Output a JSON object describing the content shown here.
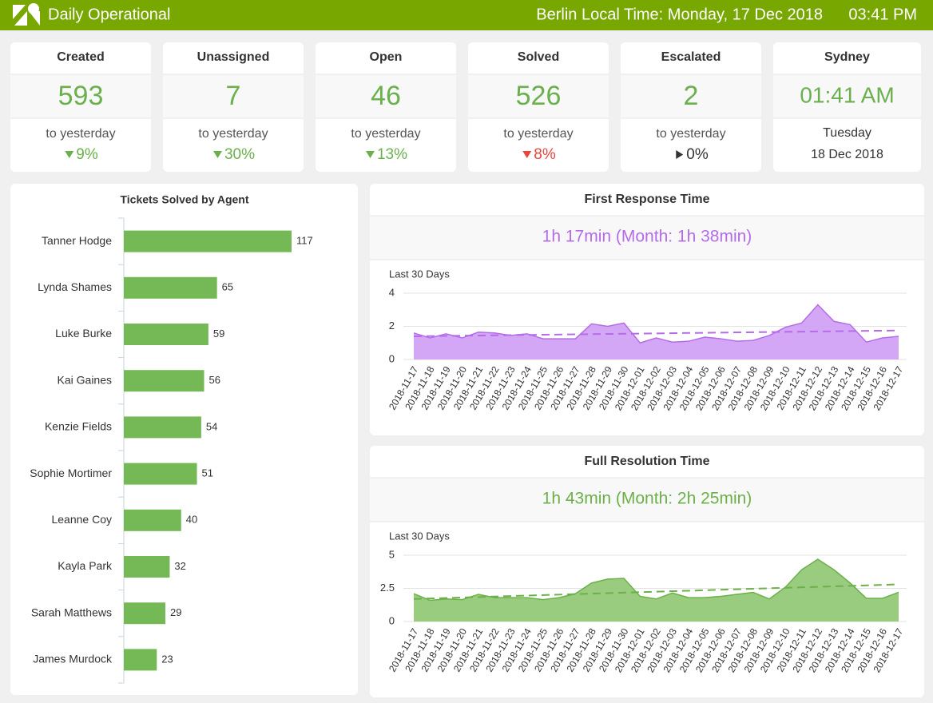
{
  "header": {
    "title": "Daily Operational",
    "time_label": "Berlin Local Time: Monday, 17 Dec 2018",
    "time": "03:41 PM",
    "color": "#78a800"
  },
  "kpis": [
    {
      "title": "Created",
      "value": "593",
      "caption": "to yesterday",
      "change": "9%",
      "arrow": "down",
      "color": "#6ab04c"
    },
    {
      "title": "Unassigned",
      "value": "7",
      "caption": "to yesterday",
      "change": "30%",
      "arrow": "down",
      "color": "#6ab04c"
    },
    {
      "title": "Open",
      "value": "46",
      "caption": "to yesterday",
      "change": "13%",
      "arrow": "down",
      "color": "#6ab04c"
    },
    {
      "title": "Solved",
      "value": "526",
      "caption": "to yesterday",
      "change": "8%",
      "arrow": "down",
      "color": "#e8453c"
    },
    {
      "title": "Escalated",
      "value": "2",
      "caption": "to yesterday",
      "change": "0%",
      "arrow": "right",
      "color": "#333333"
    }
  ],
  "clock": {
    "title": "Sydney",
    "time": "01:41 AM",
    "day": "Tuesday",
    "date": "18 Dec 2018"
  },
  "chart_data": [
    {
      "type": "bar",
      "orientation": "horizontal",
      "title": "Tickets Solved by Agent",
      "color": "#75b957",
      "categories": [
        "Tanner Hodge",
        "Lynda Shames",
        "Luke Burke",
        "Kai Gaines",
        "Kenzie Fields",
        "Sophie Mortimer",
        "Leanne Coy",
        "Kayla Park",
        "Sarah Matthews",
        "James Murdock"
      ],
      "values": [
        117,
        65,
        59,
        56,
        54,
        51,
        40,
        32,
        29,
        23
      ]
    },
    {
      "type": "area",
      "title": "First Response Time",
      "subtitle": "1h 17min (Month: 1h 38min)",
      "label": "Last 30 Days",
      "color": "#b56ce8",
      "fill": "#cf9df5",
      "x": [
        "2018-11-17",
        "2018-11-18",
        "2018-11-19",
        "2018-11-20",
        "2018-11-21",
        "2018-11-22",
        "2018-11-23",
        "2018-11-24",
        "2018-11-25",
        "2018-11-26",
        "2018-11-27",
        "2018-11-28",
        "2018-11-29",
        "2018-11-30",
        "2018-12-01",
        "2018-12-02",
        "2018-12-03",
        "2018-12-04",
        "2018-12-05",
        "2018-12-06",
        "2018-12-07",
        "2018-12-08",
        "2018-12-09",
        "2018-12-10",
        "2018-12-11",
        "2018-12-12",
        "2018-12-13",
        "2018-12-14",
        "2018-12-15",
        "2018-12-16",
        "2018-12-17"
      ],
      "values": [
        1.6,
        1.3,
        1.55,
        1.3,
        1.65,
        1.6,
        1.45,
        1.55,
        1.25,
        1.25,
        1.25,
        2.15,
        2.0,
        2.2,
        1.0,
        1.3,
        1.05,
        1.1,
        1.35,
        1.25,
        1.1,
        1.15,
        1.45,
        1.95,
        2.2,
        3.3,
        2.3,
        2.1,
        1.05,
        1.3,
        1.4
      ],
      "trend": [
        1.4,
        1.75
      ],
      "ylim": [
        0,
        4
      ],
      "yticks": [
        0,
        2,
        4
      ],
      "grid": true
    },
    {
      "type": "area",
      "title": "Full Resolution Time",
      "subtitle": "1h 43min (Month: 2h 25min)",
      "label": "Last 30 Days",
      "color": "#6cb04a",
      "fill": "#8fc772",
      "x": [
        "2018-11-17",
        "2018-11-18",
        "2018-11-19",
        "2018-11-20",
        "2018-11-21",
        "2018-11-22",
        "2018-11-23",
        "2018-11-24",
        "2018-11-25",
        "2018-11-26",
        "2018-11-27",
        "2018-11-28",
        "2018-11-29",
        "2018-11-30",
        "2018-12-01",
        "2018-12-02",
        "2018-12-03",
        "2018-12-04",
        "2018-12-05",
        "2018-12-06",
        "2018-12-07",
        "2018-12-08",
        "2018-12-09",
        "2018-12-10",
        "2018-12-11",
        "2018-12-12",
        "2018-12-13",
        "2018-12-14",
        "2018-12-15",
        "2018-12-16",
        "2018-12-17"
      ],
      "values": [
        2.1,
        1.6,
        1.7,
        1.65,
        2.05,
        1.8,
        1.8,
        1.8,
        1.65,
        1.8,
        2.1,
        2.9,
        3.2,
        3.25,
        1.9,
        1.7,
        2.15,
        1.8,
        1.8,
        1.9,
        2.05,
        2.2,
        1.7,
        2.6,
        3.9,
        4.7,
        3.9,
        2.9,
        1.75,
        1.75,
        2.2
      ],
      "trend": [
        1.7,
        2.8
      ],
      "ylim": [
        0,
        5
      ],
      "yticks": [
        0,
        2.5,
        5
      ],
      "grid": true
    }
  ]
}
